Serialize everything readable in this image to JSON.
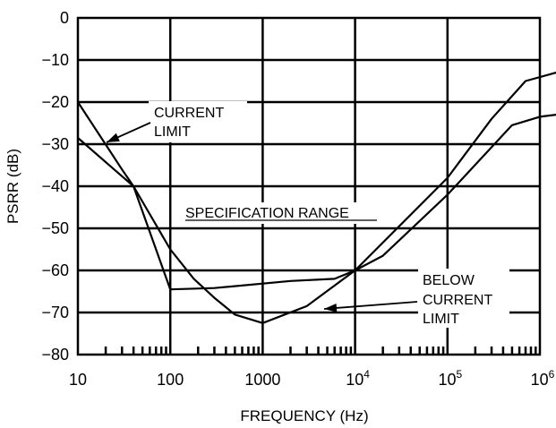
{
  "chart_data": {
    "type": "line",
    "title": "",
    "xlabel": "FREQUENCY (Hz)",
    "ylabel": "PSRR (dB)",
    "xscale": "log",
    "xlim": [
      10,
      1500000
    ],
    "ylim": [
      -80,
      0
    ],
    "grid": true,
    "x_ticks": [
      {
        "value": 10,
        "base": "10",
        "sup": ""
      },
      {
        "value": 100,
        "base": "100",
        "sup": ""
      },
      {
        "value": 1000,
        "base": "1000",
        "sup": ""
      },
      {
        "value": 10000,
        "base": "10",
        "sup": "4"
      },
      {
        "value": 100000,
        "base": "10",
        "sup": "5"
      },
      {
        "value": 1000000,
        "base": "10",
        "sup": "6"
      }
    ],
    "y_ticks": [
      "0",
      "−10",
      "−20",
      "−30",
      "−40",
      "−50",
      "−60",
      "−70",
      "−80"
    ],
    "y_tick_values": [
      0,
      -10,
      -20,
      -30,
      -40,
      -50,
      -60,
      -70,
      -80
    ],
    "series": [
      {
        "points": [
          [
            10,
            -20
          ],
          [
            30,
            -36
          ],
          [
            40,
            -40
          ],
          [
            100,
            -55
          ],
          [
            180,
            -62
          ],
          [
            300,
            -66.5
          ],
          [
            500,
            -70.5
          ],
          [
            1000,
            -72.5
          ],
          [
            3000,
            -68.5
          ],
          [
            10000,
            -60
          ],
          [
            100000,
            -38
          ],
          [
            300000,
            -24
          ],
          [
            700000,
            -15
          ],
          [
            1500000,
            -13
          ]
        ]
      },
      {
        "points": [
          [
            10,
            -28.5
          ],
          [
            40,
            -40
          ],
          [
            100,
            -64.5
          ],
          [
            300,
            -64.2
          ],
          [
            2000,
            -62.5
          ],
          [
            6000,
            -62
          ],
          [
            10000,
            -60
          ],
          [
            20000,
            -56.5
          ],
          [
            100000,
            -42
          ],
          [
            500000,
            -25.5
          ],
          [
            1000000,
            -23.5
          ],
          [
            1500000,
            -23
          ]
        ]
      }
    ],
    "annotations": {
      "current_limit": [
        "CURRENT",
        "LIMIT"
      ],
      "spec_range": "SPECIFICATION RANGE",
      "below_current_limit": [
        "BELOW",
        "CURRENT",
        "LIMIT"
      ]
    }
  }
}
